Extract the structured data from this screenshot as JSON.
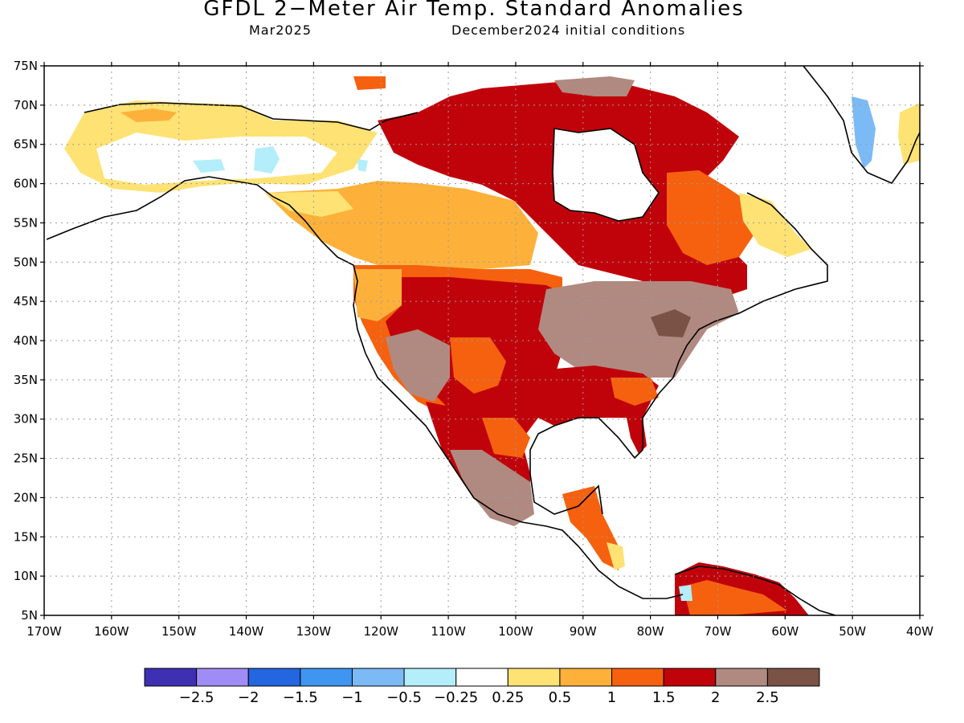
{
  "title": "GFDL 2−Meter Air Temp. Standard Anomalies",
  "subtitle_left": "Mar2025",
  "subtitle_right": "December2024 initial conditions",
  "lat_labels": [
    "75N",
    "70N",
    "65N",
    "60N",
    "55N",
    "50N",
    "45N",
    "40N",
    "35N",
    "30N",
    "25N",
    "20N",
    "15N",
    "10N",
    "5N"
  ],
  "lon_labels": [
    "170W",
    "160W",
    "150W",
    "140W",
    "130W",
    "120W",
    "110W",
    "100W",
    "90W",
    "80W",
    "70W",
    "60W",
    "50W",
    "40W"
  ],
  "colorbar": {
    "colors": [
      "#3f2fb3",
      "#a08cf5",
      "#2366e0",
      "#3f95f0",
      "#7cbaf5",
      "#b3eefa",
      "#ffffff",
      "#fee274",
      "#fdb13a",
      "#f5610f",
      "#c0030b",
      "#b08a80",
      "#7a5246"
    ],
    "labels": [
      "−2.5",
      "−2",
      "−1.5",
      "−1",
      "−0.5",
      "−0.25",
      "0.25",
      "0.5",
      "1",
      "1.5",
      "2",
      "2.5"
    ]
  },
  "colors": {
    "land_outline": "#000000",
    "grid": "#9a9a9a",
    "ocean": "#ffffff"
  }
}
